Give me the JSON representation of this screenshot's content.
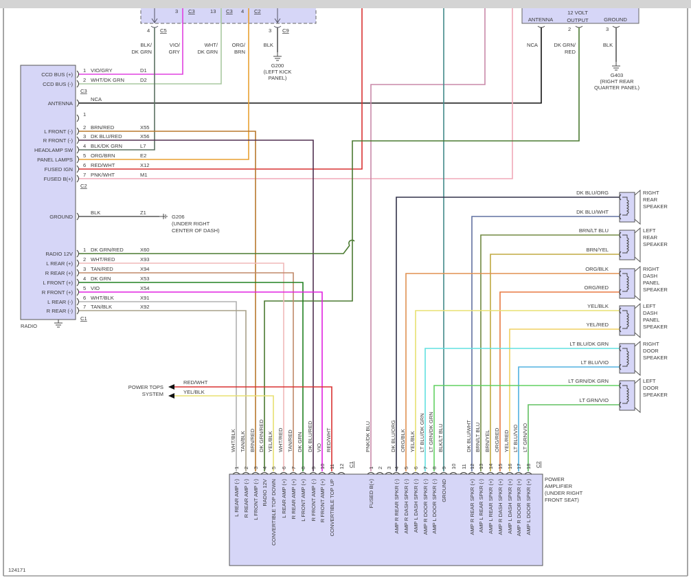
{
  "figure_id": "124171",
  "top_module": {
    "pins": [
      {
        "num": "3",
        "conn": "C3"
      },
      {
        "num": "13",
        "conn": "C3"
      },
      {
        "num": "4",
        "conn": "C2"
      }
    ],
    "c5": {
      "num": "4",
      "conn": "C5"
    },
    "c9": {
      "num": "3",
      "conn": "C9"
    },
    "wire_labels": [
      [
        "BLK/",
        "DK GRN"
      ],
      [
        "VIO/",
        "GRY"
      ],
      [
        "WHT/",
        "DK GRN"
      ],
      [
        "ORG/",
        "BRN"
      ],
      [
        "BLK",
        ""
      ]
    ]
  },
  "g200": {
    "id": "G200",
    "line1": "(LEFT KICK",
    "line2": "PANEL)"
  },
  "radio": {
    "name": "RADIO",
    "connectors": {
      "c3": "C3",
      "c2": "C2",
      "c1": "C1"
    },
    "rows": [
      {
        "label": "CCD BUS (+)",
        "pin": "1",
        "wire": "VIO/GRY",
        "circuit": "D1"
      },
      {
        "label": "CCD BUS (-)",
        "pin": "2",
        "wire": "WHT/DK GRN",
        "circuit": "D2"
      },
      {
        "label": "ANTENNA",
        "pin": "",
        "wire": "NCA",
        "circuit": ""
      },
      {
        "label": "",
        "pin": "1",
        "wire": "",
        "circuit": ""
      },
      {
        "label": "L FRONT (-)",
        "pin": "2",
        "wire": "BRN/RED",
        "circuit": "X55"
      },
      {
        "label": "R FRONT (-)",
        "pin": "3",
        "wire": "DK BLU/RED",
        "circuit": "X56"
      },
      {
        "label": "HEADLAMP SW",
        "pin": "4",
        "wire": "BLK/DK GRN",
        "circuit": "L7"
      },
      {
        "label": "PANEL LAMPS",
        "pin": "5",
        "wire": "ORG/BRN",
        "circuit": "E2"
      },
      {
        "label": "FUSED IGN",
        "pin": "6",
        "wire": "RED/WHT",
        "circuit": "X12"
      },
      {
        "label": "FUSED B(+)",
        "pin": "7",
        "wire": "PNK/WHT",
        "circuit": "M1"
      },
      {
        "label": "GROUND",
        "pin": "",
        "wire": "BLK",
        "circuit": "Z1"
      },
      {
        "label": "RADIO 12V",
        "pin": "1",
        "wire": "DK GRN/RED",
        "circuit": "X60"
      },
      {
        "label": "L REAR (+)",
        "pin": "2",
        "wire": "WHT/RED",
        "circuit": "X93"
      },
      {
        "label": "R REAR (+)",
        "pin": "3",
        "wire": "TAN/RED",
        "circuit": "X94"
      },
      {
        "label": "L FRONT (+)",
        "pin": "4",
        "wire": "DK GRN",
        "circuit": "X53"
      },
      {
        "label": "R FRONT (+)",
        "pin": "5",
        "wire": "VIO",
        "circuit": "X54"
      },
      {
        "label": "L REAR (-)",
        "pin": "6",
        "wire": "WHT/BLK",
        "circuit": "X91"
      },
      {
        "label": "R REAR (-)",
        "pin": "7",
        "wire": "TAN/BLK",
        "circuit": "X92"
      }
    ]
  },
  "g206": {
    "id": "G206",
    "line1": "(UNDER RIGHT",
    "line2": "CENTER OF DASH)"
  },
  "antenna_module": {
    "antenna": "ANTENNA",
    "volt_line1": "12 VOLT",
    "volt_line2": "OUTPUT",
    "ground": "GROUND",
    "pin_volt": "2",
    "pin_ground": "3",
    "wire_antenna": "NCA",
    "wire_volt_line1": "DK GRN/",
    "wire_volt_line2": "RED",
    "wire_ground": "BLK"
  },
  "g403": {
    "id": "G403",
    "line1": "(RIGHT REAR",
    "line2": "QUARTER PANEL)"
  },
  "power_tops": {
    "line1": "POWER TOPS",
    "line2": "SYSTEM",
    "wire1": "RED/WHT",
    "wire2": "YEL/BLK"
  },
  "amplifier": {
    "name_lines": [
      "POWER",
      "AMPLIFIER",
      "(UNDER RIGHT",
      "FRONT SEAT)"
    ],
    "c1": {
      "label": "C1",
      "pins": [
        {
          "num": "1",
          "wire": "WHT/BLK",
          "func": "L REAR AMP (-)"
        },
        {
          "num": "2",
          "wire": "TAN/BLK",
          "func": "R REAR AMP (-)"
        },
        {
          "num": "3",
          "wire": "BRN/RED",
          "func": "L FRONT AMP (-)"
        },
        {
          "num": "4",
          "wire": "DK GRN/RED",
          "func": "RADIO 12V"
        },
        {
          "num": "5",
          "wire": "YEL/BLK",
          "func": "CONVERTIBLE TOP DOWN"
        },
        {
          "num": "6",
          "wire": "WHT/RED",
          "func": "L REAR AMP (+)"
        },
        {
          "num": "7",
          "wire": "TAN/RED",
          "func": "R REAR AMP (+)"
        },
        {
          "num": "8",
          "wire": "DK GRN",
          "func": "L FRONT AMP (+)"
        },
        {
          "num": "9",
          "wire": "DK BLU/RED",
          "func": "R FRONT AMP (-)"
        },
        {
          "num": "10",
          "wire": "VIO",
          "func": "R FRONT AMP (+)"
        },
        {
          "num": "11",
          "wire": "RED/WHT",
          "func": "CONVERTIBLE TOP UP"
        },
        {
          "num": "12",
          "wire": "",
          "func": ""
        }
      ]
    },
    "c2": {
      "label": "C2",
      "pins": [
        {
          "num": "1",
          "wire": "PNK/DK BLU",
          "func": "FUSED B(+)"
        },
        {
          "num": "2",
          "wire": "",
          "func": ""
        },
        {
          "num": "3",
          "wire": "",
          "func": ""
        },
        {
          "num": "4",
          "wire": "DK BLU/ORG",
          "func": "AMP R REAR SPKR (-)"
        },
        {
          "num": "5",
          "wire": "ORG/BLK",
          "func": "AMP R DASH SPKR (-)"
        },
        {
          "num": "6",
          "wire": "YEL/BLK",
          "func": "AMP L DASH SPKR (-)"
        },
        {
          "num": "7",
          "wire": "LT BLU/DK GRN",
          "func": "AMP R DOOR SPKR (-)"
        },
        {
          "num": "8",
          "wire": "LT GRN/DK GRN",
          "func": "AMP L DOOR SPKR (-)"
        },
        {
          "num": "9",
          "wire": "BLK/LT BLU",
          "func": "GROUND"
        },
        {
          "num": "10",
          "wire": "",
          "func": ""
        },
        {
          "num": "11",
          "wire": "",
          "func": ""
        },
        {
          "num": "12",
          "wire": "DK BLU/WHT",
          "func": "AMP R REAR SPKR (+)"
        },
        {
          "num": "13",
          "wire": "BRN/LT BLU",
          "func": "AMP L REAR SPKR (-)"
        },
        {
          "num": "14",
          "wire": "BRN/YEL",
          "func": "AMP L REAR SPKR (+)"
        },
        {
          "num": "15",
          "wire": "ORG/RED",
          "func": "AMP R DASH SPKR (+)"
        },
        {
          "num": "16",
          "wire": "YEL/RED",
          "func": "AMP L DASH SPKR (+)"
        },
        {
          "num": "17",
          "wire": "LT BLU/VIO",
          "func": "AMP R DOOR SPKR (+)"
        },
        {
          "num": "18",
          "wire": "LT GRN/VIO",
          "func": "AMP L DOOR SPKR (+)"
        }
      ]
    }
  },
  "speakers": [
    {
      "name": [
        "RIGHT",
        "REAR",
        "SPEAKER"
      ],
      "wires": [
        "DK BLU/ORG",
        "DK BLU/WHT"
      ]
    },
    {
      "name": [
        "LEFT",
        "REAR",
        "SPEAKER"
      ],
      "wires": [
        "BRN/LT BLU",
        "BRN/YEL"
      ]
    },
    {
      "name": [
        "RIGHT",
        "DASH",
        "PANEL",
        "SPEAKER"
      ],
      "wires": [
        "ORG/BLK",
        "ORG/RED"
      ]
    },
    {
      "name": [
        "LEFT",
        "DASH",
        "PANEL",
        "SPEAKER"
      ],
      "wires": [
        "YEL/BLK",
        "YEL/RED"
      ]
    },
    {
      "name": [
        "RIGHT",
        "DOOR",
        "SPEAKER"
      ],
      "wires": [
        "LT BLU/DK GRN",
        "LT BLU/VIO"
      ]
    },
    {
      "name": [
        "LEFT",
        "DOOR",
        "SPEAKER"
      ],
      "wires": [
        "LT GRN/DK GRN",
        "LT GRN/VIO"
      ]
    }
  ],
  "colors": {
    "vio_gry": "#e040e0",
    "wht_dkgrn": "#a8c8a0",
    "nca": "#111111",
    "brn_red": "#b8782c",
    "dkblu_red": "#503050",
    "blk_dkgrn": "#5a7060",
    "org_brn": "#e8a030",
    "red_wht": "#d83030",
    "pnk_wht": "#f0a8b8",
    "blk": "#555555",
    "dkgrn_red": "#4a7a30",
    "wht_red": "#f0b8b8",
    "tan_red": "#c08868",
    "dkgrn": "#208020",
    "vio": "#e020e0",
    "wht_blk": "#b0b0b0",
    "tan_blk": "#a8a088",
    "yel_blk": "#e8e070",
    "pnk_dkblu": "#c888a8",
    "blk_ltblu": "#408888",
    "dkblu_org": "#303048",
    "dkblu_wht": "#6070a0",
    "brn_ltblu": "#708840",
    "brn_yel": "#c0a840",
    "org_blk": "#e09050",
    "org_red": "#e87840",
    "yel_red": "#f0d060",
    "ltblu_dkgrn": "#60e0e0",
    "ltblu_vio": "#50b0e0",
    "ltgrn_dkgrn": "#60d060",
    "ltgrn_vio": "#60c060",
    "component_fill": "#d6d6f7"
  }
}
